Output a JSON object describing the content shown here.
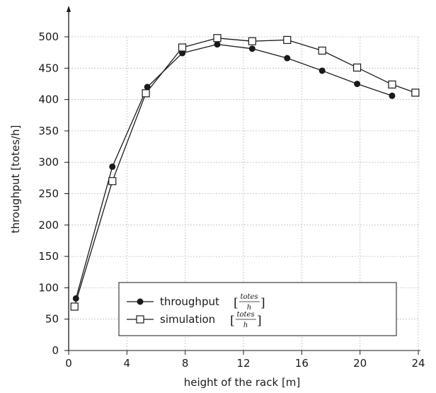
{
  "chart_data": {
    "type": "line",
    "xlabel": "height of the rack [m]",
    "ylabel": "throughput [totes/h]",
    "xlim": [
      0,
      24
    ],
    "ylim": [
      0,
      500
    ],
    "xticks": [
      0,
      4,
      8,
      12,
      16,
      20,
      24
    ],
    "yticks": [
      0,
      50,
      100,
      150,
      200,
      250,
      300,
      350,
      400,
      450,
      500
    ],
    "grid": true,
    "legend_position": "bottom-center",
    "series": [
      {
        "name": "throughput",
        "unit_num": "totes",
        "unit_den": "h",
        "marker": "filled-circle",
        "x": [
          0.5,
          3.0,
          5.4,
          7.8,
          10.2,
          12.6,
          15.0,
          17.4,
          19.8,
          22.2
        ],
        "y": [
          83,
          293,
          420,
          474,
          488,
          481,
          466,
          446,
          425,
          406
        ]
      },
      {
        "name": "simulation",
        "unit_num": "totes",
        "unit_den": "h",
        "marker": "open-square",
        "x": [
          0.4,
          3.0,
          5.3,
          7.8,
          10.2,
          12.6,
          15.0,
          17.4,
          19.8,
          22.2,
          23.8
        ],
        "y": [
          70,
          270,
          410,
          483,
          498,
          493,
          495,
          478,
          451,
          424,
          411
        ]
      }
    ],
    "colors": {
      "line": "#1a1a1a",
      "grid": "#bdbdbd",
      "marker_fill_open": "#ffffff"
    }
  }
}
